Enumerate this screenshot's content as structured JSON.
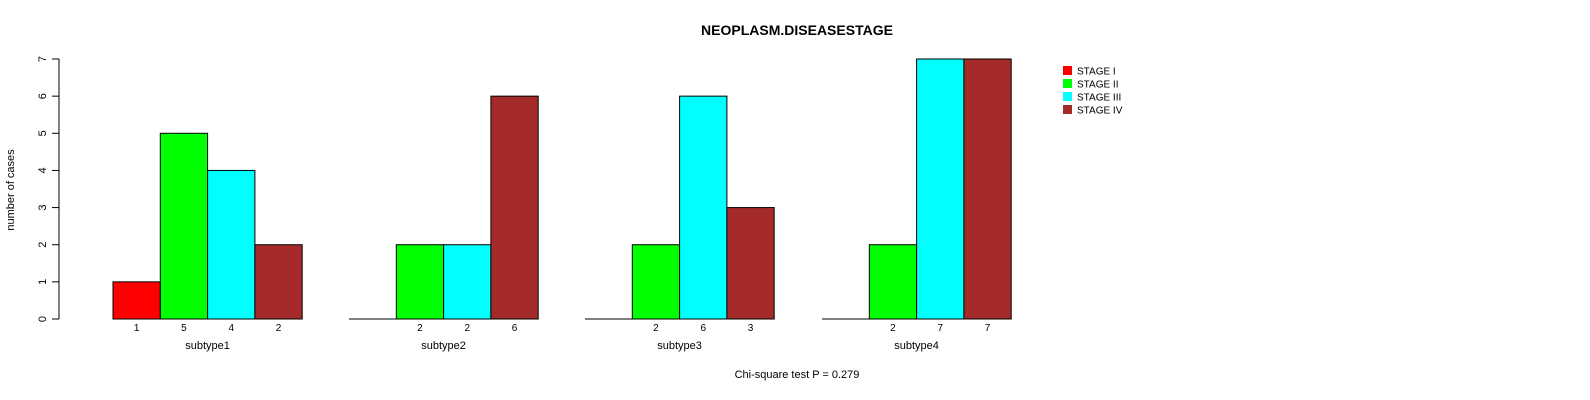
{
  "chart_data": {
    "type": "bar",
    "title": "NEOPLASM.DISEASESTAGE",
    "ylabel": "number of cases",
    "xlabel": "",
    "ylim": [
      0,
      7
    ],
    "yticks": [
      "0",
      "1",
      "2",
      "3",
      "4",
      "5",
      "6",
      "7"
    ],
    "categories": [
      "subtype1",
      "subtype2",
      "subtype3",
      "subtype4"
    ],
    "series": [
      {
        "name": "STAGE I",
        "color": "#ff0000",
        "values": [
          1,
          0,
          0,
          0
        ]
      },
      {
        "name": "STAGE II",
        "color": "#00ff00",
        "values": [
          5,
          2,
          2,
          2
        ]
      },
      {
        "name": "STAGE III",
        "color": "#00ffff",
        "values": [
          4,
          2,
          6,
          7
        ]
      },
      {
        "name": "STAGE IV",
        "color": "#a52a2a",
        "values": [
          2,
          6,
          3,
          7
        ]
      }
    ],
    "bar_labels": [
      [
        "1",
        "5",
        "4",
        "2"
      ],
      [
        "",
        "2",
        "2",
        "6"
      ],
      [
        "",
        "2",
        "6",
        "3"
      ],
      [
        "",
        "2",
        "7",
        "7"
      ]
    ],
    "legend_position": "top-right",
    "footnote": "Chi-square test P = 0.279"
  }
}
